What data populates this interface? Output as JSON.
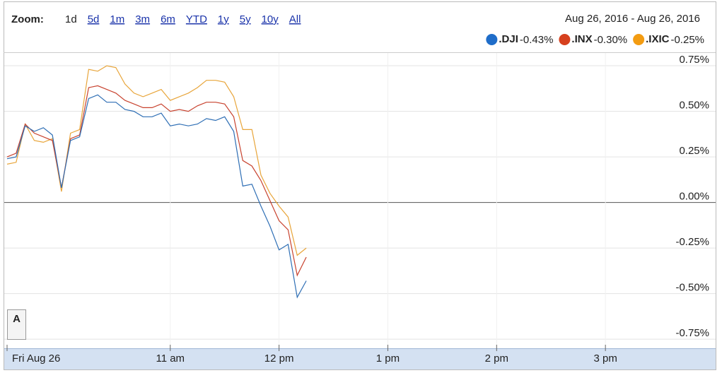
{
  "chart_data": {
    "type": "line",
    "zoom_label": "Zoom:",
    "zoom_options": [
      "1d",
      "5d",
      "1m",
      "3m",
      "6m",
      "YTD",
      "1y",
      "5y",
      "10y",
      "All"
    ],
    "date_range": "Aug 26, 2016  -  Aug 26, 2016",
    "annotation": "A",
    "x": [
      9.5,
      9.5833,
      9.6667,
      9.75,
      9.8333,
      9.9167,
      10,
      10.0833,
      10.1667,
      10.25,
      10.3333,
      10.4167,
      10.5,
      10.5833,
      10.6667,
      10.75,
      10.8333,
      10.9167,
      11,
      11.0833,
      11.1667,
      11.25,
      11.3333,
      11.4167,
      11.5,
      11.5833,
      11.6667,
      11.75,
      11.8333,
      11.9167,
      12,
      12.0833,
      12.1667,
      12.25
    ],
    "xlim": [
      9.5,
      16
    ],
    "xticks": [
      {
        "value": 9.5,
        "label": "Fri Aug 26"
      },
      {
        "value": 11,
        "label": "11 am"
      },
      {
        "value": 12,
        "label": "12 pm"
      },
      {
        "value": 13,
        "label": "1 pm"
      },
      {
        "value": 14,
        "label": "2 pm"
      },
      {
        "value": 15,
        "label": "3 pm"
      }
    ],
    "ylim": [
      -0.8,
      0.82
    ],
    "yticks": [
      {
        "value": 0.75,
        "label": "0.75%"
      },
      {
        "value": 0.5,
        "label": "0.50%"
      },
      {
        "value": 0.25,
        "label": "0.25%"
      },
      {
        "value": 0,
        "label": "0.00%"
      },
      {
        "value": -0.25,
        "label": "-0.25%"
      },
      {
        "value": -0.5,
        "label": "-0.50%"
      },
      {
        "value": -0.75,
        "label": "-0.75%"
      }
    ],
    "grid": true,
    "series": [
      {
        "name": ".DJI",
        "change": "-0.43%",
        "color": "#1f6dc9",
        "line_color": "#2f6fb5",
        "values": [
          0.24,
          0.25,
          0.42,
          0.39,
          0.41,
          0.37,
          0.08,
          0.34,
          0.36,
          0.57,
          0.59,
          0.55,
          0.55,
          0.51,
          0.5,
          0.47,
          0.47,
          0.49,
          0.42,
          0.43,
          0.42,
          0.43,
          0.46,
          0.45,
          0.47,
          0.39,
          0.09,
          0.1,
          -0.02,
          -0.13,
          -0.26,
          -0.23,
          -0.52,
          -0.43
        ]
      },
      {
        "name": ".INX",
        "change": "-0.30%",
        "color": "#d6401e",
        "line_color": "#c8432f",
        "values": [
          0.25,
          0.27,
          0.43,
          0.38,
          0.36,
          0.34,
          0.08,
          0.35,
          0.37,
          0.63,
          0.64,
          0.62,
          0.6,
          0.56,
          0.54,
          0.52,
          0.52,
          0.54,
          0.5,
          0.51,
          0.5,
          0.53,
          0.55,
          0.55,
          0.54,
          0.47,
          0.23,
          0.2,
          0.12,
          0.01,
          -0.1,
          -0.15,
          -0.4,
          -0.3
        ]
      },
      {
        "name": ".IXIC",
        "change": "-0.25%",
        "color": "#f39c12",
        "line_color": "#e8a53a",
        "values": [
          0.21,
          0.22,
          0.43,
          0.34,
          0.33,
          0.35,
          0.06,
          0.38,
          0.4,
          0.73,
          0.72,
          0.75,
          0.74,
          0.65,
          0.6,
          0.58,
          0.6,
          0.62,
          0.56,
          0.58,
          0.6,
          0.63,
          0.67,
          0.67,
          0.66,
          0.58,
          0.4,
          0.4,
          0.15,
          0.05,
          -0.02,
          -0.08,
          -0.29,
          -0.25
        ]
      }
    ]
  }
}
